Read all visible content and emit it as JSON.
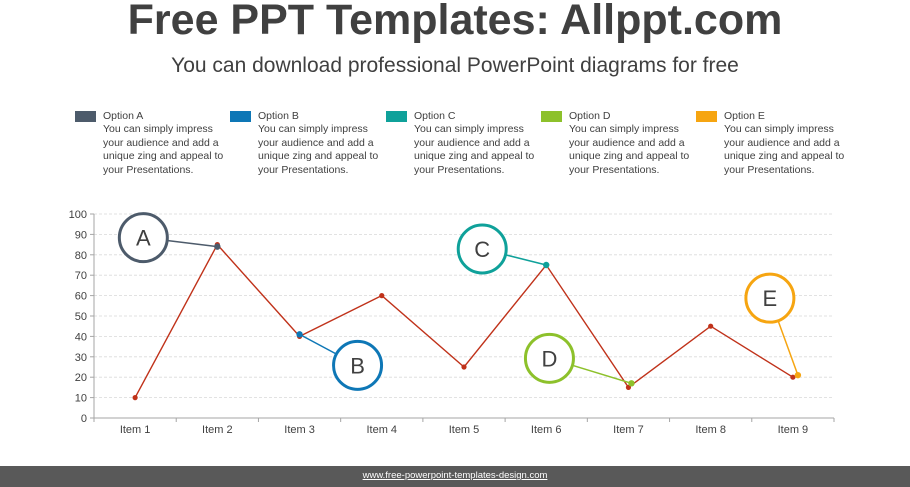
{
  "header": {
    "title": "Free PPT Templates: Allppt.com",
    "subtitle": "You can download professional PowerPoint diagrams for free"
  },
  "legend": [
    {
      "name": "Option A",
      "color": "#4d5b6b",
      "description": "You can simply impress your audience and add a unique zing and appeal to your Presentations."
    },
    {
      "name": "Option B",
      "color": "#0e77b6",
      "description": "You can simply impress your audience and add a unique zing and appeal to your Presentations."
    },
    {
      "name": "Option C",
      "color": "#0fa19a",
      "description": "You can simply impress your audience and add a unique zing and appeal to your Presentations."
    },
    {
      "name": "Option D",
      "color": "#8dc12b",
      "description": "You can simply impress your audience and add a unique zing and appeal to your Presentations."
    },
    {
      "name": "Option E",
      "color": "#f6a511",
      "description": "You can simply impress your audience and add a unique zing and appeal to your Presentations."
    }
  ],
  "chart_data": {
    "type": "line",
    "categories": [
      "Item 1",
      "Item 2",
      "Item 3",
      "Item 4",
      "Item 5",
      "Item 6",
      "Item 7",
      "Item 8",
      "Item 9"
    ],
    "series": [
      {
        "color": "#c0321a",
        "values": [
          10,
          85,
          40,
          60,
          25,
          75,
          15,
          45,
          20
        ]
      }
    ],
    "ylim": [
      0,
      100
    ],
    "yticks": [
      0,
      10,
      20,
      30,
      40,
      50,
      60,
      70,
      80,
      90,
      100
    ],
    "grid": true,
    "callouts": [
      {
        "label": "A",
        "color": "#4d5b6b",
        "category": "Item 2",
        "value": 84
      },
      {
        "label": "B",
        "color": "#0e77b6",
        "category": "Item 3",
        "value": 41
      },
      {
        "label": "C",
        "color": "#0fa19a",
        "category": "Item 6",
        "value": 75
      },
      {
        "label": "D",
        "color": "#8dc12b",
        "category": "Item 7",
        "value": 17
      },
      {
        "label": "E",
        "color": "#f6a511",
        "category": "Item 9",
        "value": 21
      }
    ]
  },
  "footer": {
    "text": "www.free-powerpoint-templates-design.com"
  }
}
